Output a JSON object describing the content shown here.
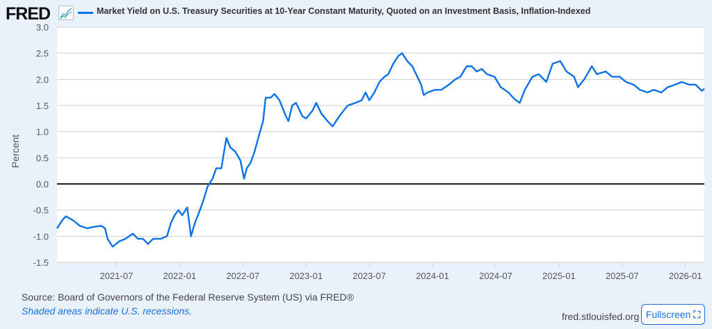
{
  "header": {
    "logo": "FRED",
    "series_title": "Market Yield on U.S. Treasury Securities at 10-Year Constant Maturity, Quoted on an Investment Basis, Inflation-Indexed"
  },
  "footer": {
    "source": "Source: Board of Governors of the Federal Reserve System (US) via FRED®",
    "recession_note": "Shaded areas indicate U.S. recessions.",
    "site": "fred.stlouisfed.org",
    "fullscreen_label": "Fullscreen"
  },
  "colors": {
    "series": "#0a71e6",
    "zero_line": "#000000"
  },
  "chart_data": {
    "type": "line",
    "title": "Market Yield on U.S. Treasury Securities at 10-Year Constant Maturity, Quoted on an Investment Basis, Inflation-Indexed",
    "xlabel": "",
    "ylabel": "Percent",
    "ylim": [
      -1.5,
      3.0
    ],
    "xlim": [
      2021.03,
      2026.15
    ],
    "yticks": [
      "3.0",
      "2.5",
      "2.0",
      "1.5",
      "1.0",
      "0.5",
      "0.0",
      "-0.5",
      "-1.0",
      "-1.5"
    ],
    "xticks": [
      "2021-07",
      "2022-01",
      "2022-07",
      "2023-01",
      "2023-07",
      "2024-01",
      "2024-07",
      "2025-01",
      "2025-07",
      "2026-01"
    ],
    "grid": true,
    "series": [
      {
        "name": "Market Yield on U.S. Treasury Securities at 10-Year Constant Maturity, Quoted on an Investment Basis, Inflation-Indexed",
        "x": [
          2021.03,
          2021.07,
          2021.1,
          2021.16,
          2021.21,
          2021.27,
          2021.32,
          2021.38,
          2021.41,
          2021.43,
          2021.47,
          2021.52,
          2021.57,
          2021.63,
          2021.67,
          2021.71,
          2021.75,
          2021.79,
          2021.85,
          2021.9,
          2021.93,
          2021.96,
          2021.99,
          2022.02,
          2022.06,
          2022.09,
          2022.12,
          2022.16,
          2022.19,
          2022.22,
          2022.26,
          2022.29,
          2022.33,
          2022.35,
          2022.37,
          2022.4,
          2022.44,
          2022.48,
          2022.51,
          2022.53,
          2022.56,
          2022.59,
          2022.63,
          2022.66,
          2022.68,
          2022.72,
          2022.75,
          2022.79,
          2022.84,
          2022.86,
          2022.89,
          2022.92,
          2022.95,
          2022.97,
          2023.0,
          2023.05,
          2023.08,
          2023.12,
          2023.17,
          2023.21,
          2023.25,
          2023.28,
          2023.33,
          2023.39,
          2023.44,
          2023.47,
          2023.5,
          2023.54,
          2023.58,
          2023.62,
          2023.65,
          2023.69,
          2023.73,
          2023.76,
          2023.8,
          2023.84,
          2023.87,
          2023.91,
          2023.93,
          2023.96,
          2024.02,
          2024.07,
          2024.13,
          2024.18,
          2024.22,
          2024.27,
          2024.31,
          2024.35,
          2024.39,
          2024.43,
          2024.49,
          2024.54,
          2024.6,
          2024.65,
          2024.69,
          2024.73,
          2024.79,
          2024.84,
          2024.9,
          2024.95,
          2025.01,
          2025.06,
          2025.12,
          2025.15,
          2025.2,
          2025.26,
          2025.3,
          2025.37,
          2025.42,
          2025.48,
          2025.53,
          2025.59,
          2025.64,
          2025.7,
          2025.75,
          2025.81,
          2025.86,
          2025.92,
          2025.97,
          2026.03,
          2026.08,
          2026.13,
          2026.15
        ],
        "y": [
          -0.85,
          -0.7,
          -0.62,
          -0.7,
          -0.8,
          -0.85,
          -0.82,
          -0.8,
          -0.85,
          -1.05,
          -1.2,
          -1.1,
          -1.05,
          -0.95,
          -1.05,
          -1.05,
          -1.15,
          -1.05,
          -1.05,
          -1.0,
          -0.75,
          -0.6,
          -0.5,
          -0.6,
          -0.45,
          -1.0,
          -0.75,
          -0.5,
          -0.3,
          -0.05,
          0.1,
          0.3,
          0.3,
          0.6,
          0.88,
          0.7,
          0.62,
          0.45,
          0.1,
          0.3,
          0.4,
          0.6,
          0.95,
          1.2,
          1.65,
          1.65,
          1.72,
          1.6,
          1.3,
          1.2,
          1.5,
          1.55,
          1.4,
          1.3,
          1.25,
          1.4,
          1.55,
          1.35,
          1.2,
          1.1,
          1.25,
          1.35,
          1.5,
          1.55,
          1.6,
          1.75,
          1.6,
          1.75,
          1.95,
          2.05,
          2.1,
          2.3,
          2.45,
          2.5,
          2.35,
          2.25,
          2.1,
          1.9,
          1.7,
          1.75,
          1.8,
          1.8,
          1.9,
          2.0,
          2.05,
          2.25,
          2.25,
          2.15,
          2.2,
          2.1,
          2.05,
          1.85,
          1.75,
          1.62,
          1.55,
          1.8,
          2.05,
          2.1,
          1.95,
          2.3,
          2.35,
          2.15,
          2.05,
          1.85,
          2.0,
          2.25,
          2.1,
          2.15,
          2.05,
          2.05,
          1.95,
          1.9,
          1.8,
          1.75,
          1.8,
          1.75,
          1.85,
          1.9,
          1.95,
          1.9,
          1.9,
          1.78,
          1.82
        ]
      }
    ]
  }
}
